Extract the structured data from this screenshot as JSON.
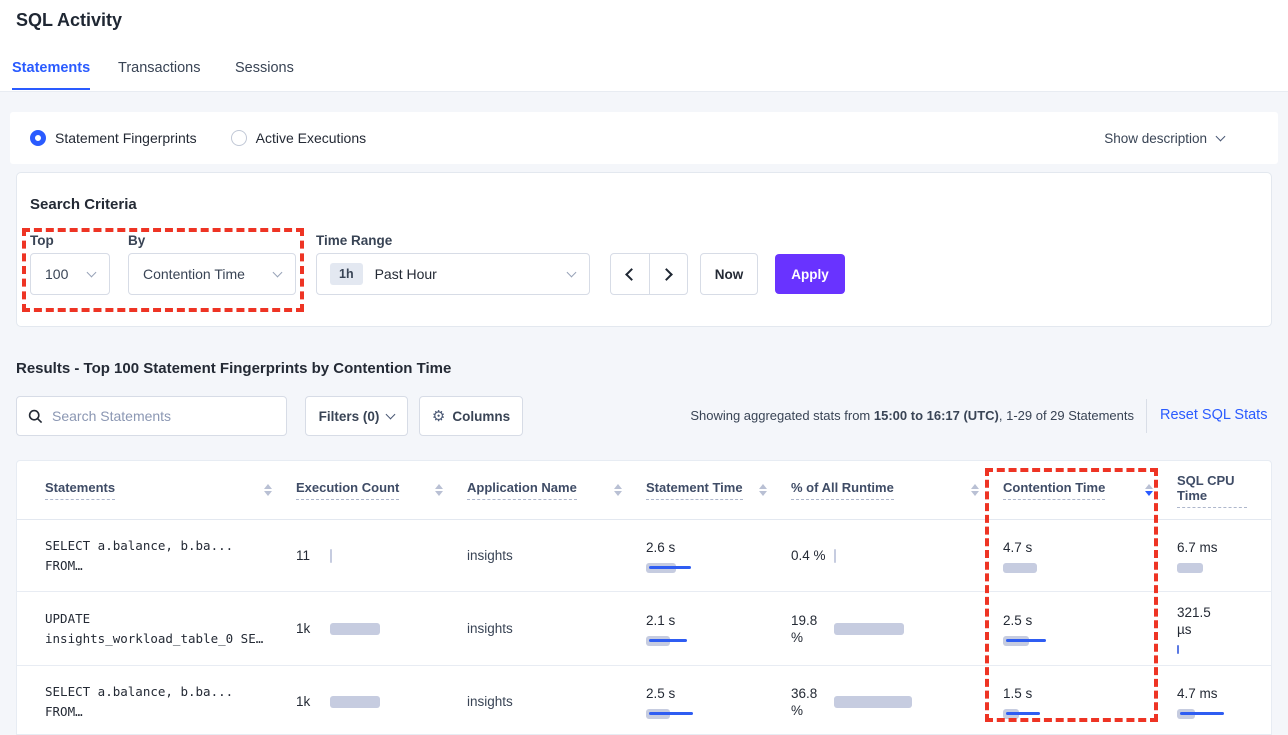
{
  "app": {
    "title": "SQL Activity"
  },
  "tabs": [
    {
      "label": "Statements",
      "active": true
    },
    {
      "label": "Transactions",
      "active": false
    },
    {
      "label": "Sessions",
      "active": false
    }
  ],
  "view_toggle": {
    "options": [
      {
        "label": "Statement Fingerprints",
        "selected": true
      },
      {
        "label": "Active Executions",
        "selected": false
      }
    ],
    "show_description_label": "Show description"
  },
  "search_criteria": {
    "heading": "Search Criteria",
    "top": {
      "label": "Top",
      "value": "100"
    },
    "by": {
      "label": "By",
      "value": "Contention Time"
    },
    "time_range": {
      "label": "Time Range",
      "badge": "1h",
      "value": "Past Hour"
    },
    "now_button": "Now",
    "apply_button": "Apply"
  },
  "results": {
    "heading": "Results - Top 100 Statement Fingerprints by Contention Time",
    "search_placeholder": "Search Statements",
    "filters_button": "Filters (0)",
    "columns_button": "Columns",
    "gear_glyph": "⚙",
    "stats": {
      "prefix": "Showing aggregated stats from ",
      "bold_range": "15:00 to 16:17 (UTC)",
      "suffix": ", 1-29 of 29 Statements"
    },
    "reset_link": "Reset SQL Stats"
  },
  "table": {
    "columns": [
      {
        "label": "Statements",
        "sort": null
      },
      {
        "label": "Execution Count",
        "sort": null
      },
      {
        "label": "Application Name",
        "sort": null
      },
      {
        "label": "Statement Time",
        "sort": null
      },
      {
        "label": "% of All Runtime",
        "sort": null
      },
      {
        "label": "Contention Time",
        "sort": "desc"
      },
      {
        "label": "SQL CPU Time",
        "sort": null
      }
    ],
    "rows": [
      {
        "statement_line1": "SELECT a.balance, b.ba...",
        "statement_line2": "FROM…",
        "execution_count": "11",
        "application_name": "insights",
        "statement_time": "2.6 s",
        "runtime_pct": "0.4 %",
        "contention_time": "4.7 s",
        "sql_cpu_time": "6.7 ms",
        "bars": {
          "execution_count": {
            "g": 2,
            "b": 0,
            "h": 14
          },
          "statement_time": {
            "g": 30,
            "b": 42,
            "h": 10
          },
          "runtime_pct": {
            "g": 2,
            "b": 0,
            "h": 14
          },
          "contention_time": {
            "g": 34,
            "b": 0,
            "h": 10
          },
          "sql_cpu_time": {
            "g": 26,
            "b": 0,
            "h": 10
          }
        }
      },
      {
        "statement_line1": "UPDATE",
        "statement_line2": "insights_workload_table_0 SE…",
        "execution_count": "1k",
        "application_name": "insights",
        "statement_time": "2.1 s",
        "runtime_pct": "19.8 %",
        "contention_time": "2.5 s",
        "sql_cpu_time": "321.5 µs",
        "bars": {
          "execution_count": {
            "g": 50,
            "b": 0,
            "h": 12
          },
          "statement_time": {
            "g": 24,
            "b": 38,
            "h": 10
          },
          "runtime_pct": {
            "g": 70,
            "b": 0,
            "h": 12
          },
          "contention_time": {
            "g": 26,
            "b": 40,
            "h": 10
          },
          "sql_cpu_time": {
            "g": 2,
            "b": 0,
            "h": 9,
            "blue": true
          }
        }
      },
      {
        "statement_line1": "SELECT a.balance, b.ba...",
        "statement_line2": "FROM…",
        "execution_count": "1k",
        "application_name": "insights",
        "statement_time": "2.5 s",
        "runtime_pct": "36.8 %",
        "contention_time": "1.5 s",
        "sql_cpu_time": "4.7 ms",
        "bars": {
          "execution_count": {
            "g": 50,
            "b": 0,
            "h": 12
          },
          "statement_time": {
            "g": 24,
            "b": 44,
            "h": 10
          },
          "runtime_pct": {
            "g": 78,
            "b": 0,
            "h": 12
          },
          "contention_time": {
            "g": 16,
            "b": 34,
            "h": 10
          },
          "sql_cpu_time": {
            "g": 18,
            "b": 44,
            "h": 10
          }
        }
      }
    ]
  },
  "colors": {
    "accent_blue": "#2a5bff",
    "bar_blue": "#2f5df2",
    "bar_gray": "#c6cce0",
    "apply_purple": "#6933ff",
    "highlight_red": "#ee3424",
    "page_bg": "#f4f6fa"
  }
}
